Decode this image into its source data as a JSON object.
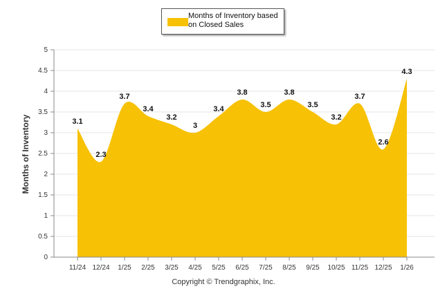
{
  "legend": {
    "label": "Months of Inventory based on Closed Sales"
  },
  "footer": {
    "copyright": "Copyright © Trendgraphix, Inc."
  },
  "colors": {
    "area": "#f7c106",
    "grid": "#e6e6e6"
  },
  "chart_data": {
    "type": "area",
    "ylabel": "Months of Inventory",
    "xlabel": "",
    "ylim": [
      0,
      5
    ],
    "yticks": [
      "0",
      "0.5",
      "1",
      "1.5",
      "2",
      "2.5",
      "3",
      "3.5",
      "4",
      "4.5",
      "5"
    ],
    "grid": true,
    "legend_position": "top-center",
    "categories": [
      "11/24",
      "12/24",
      "1/25",
      "2/25",
      "3/25",
      "4/25",
      "5/25",
      "6/25",
      "7/25",
      "8/25",
      "9/25",
      "10/25",
      "11/25",
      "12/25",
      "1/26"
    ],
    "series": [
      {
        "name": "Months of Inventory based on Closed Sales",
        "values": [
          3.1,
          2.3,
          3.7,
          3.4,
          3.2,
          3,
          3.4,
          3.8,
          3.5,
          3.8,
          3.5,
          3.2,
          3.7,
          2.6,
          4.3
        ],
        "labels": [
          "3.1",
          "2.3",
          "3.7",
          "3.4",
          "3.2",
          "3",
          "3.4",
          "3.8",
          "3.5",
          "3.8",
          "3.5",
          "3.2",
          "3.7",
          "2.6",
          "4.3"
        ]
      }
    ]
  }
}
